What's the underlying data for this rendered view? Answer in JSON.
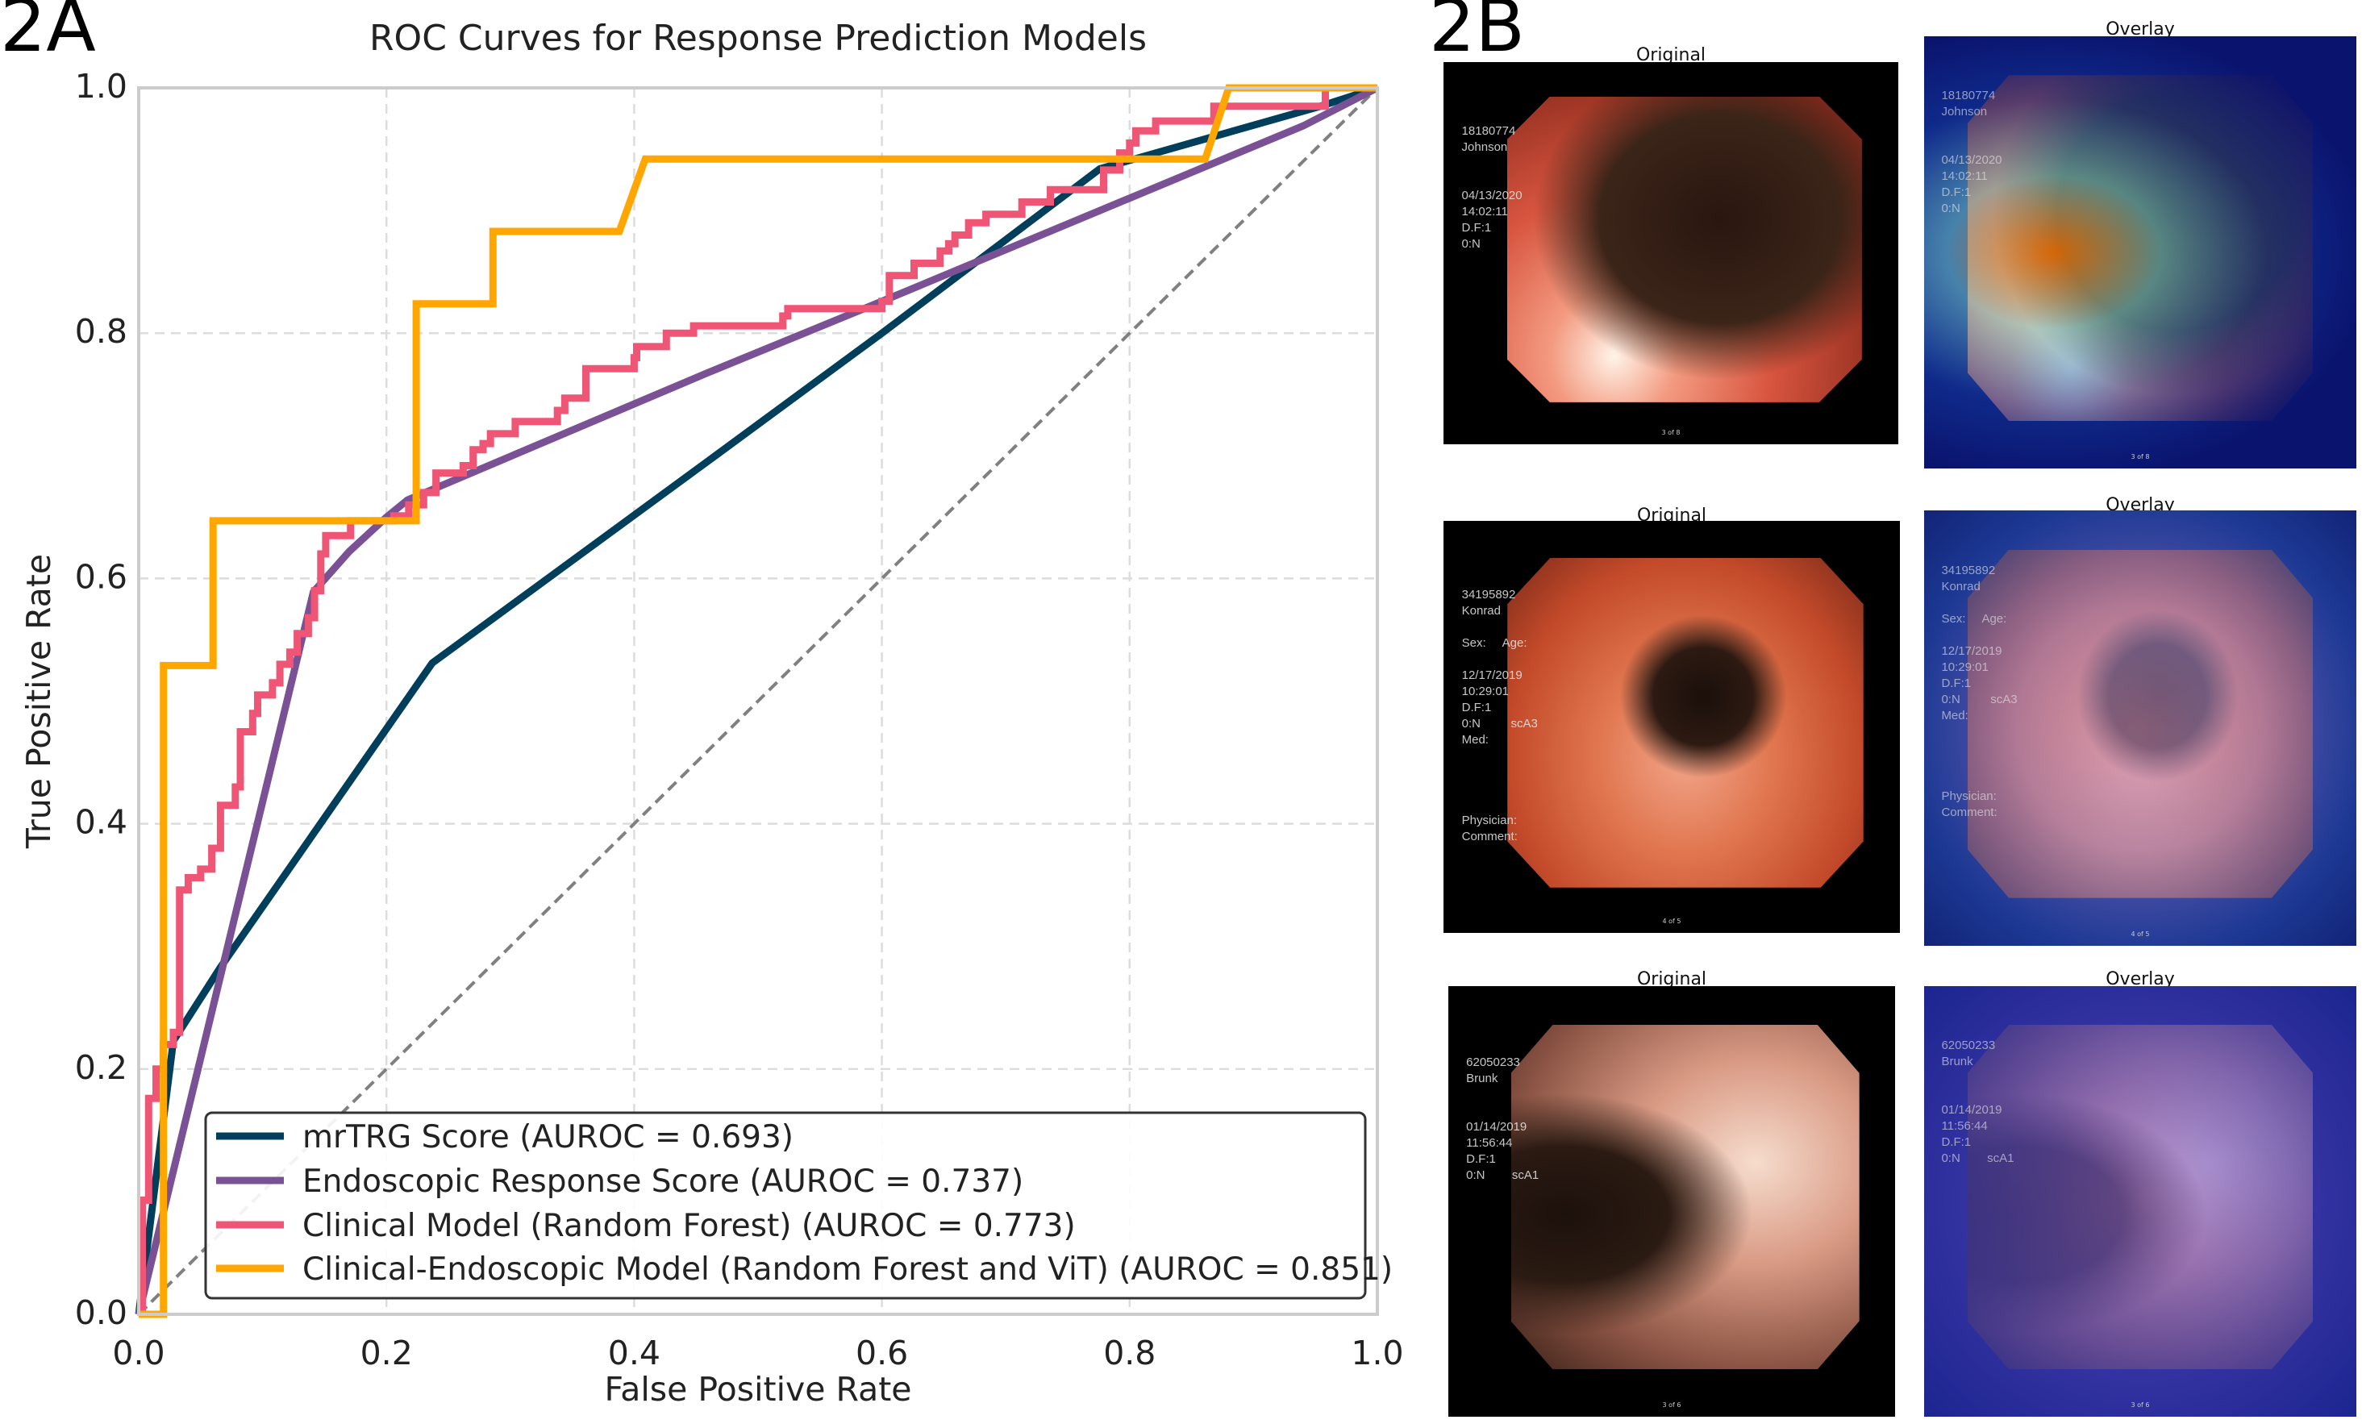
{
  "panels": {
    "a_label": "2A",
    "b_label": "2B"
  },
  "chart_data": {
    "type": "line",
    "title": "ROC Curves for Response Prediction Models",
    "xlabel": "False Positive Rate",
    "ylabel": "True Positive Rate",
    "xlim": [
      0,
      1
    ],
    "ylim": [
      0,
      1
    ],
    "xticks": [
      "0.0",
      "0.2",
      "0.4",
      "0.6",
      "0.8",
      "1.0"
    ],
    "yticks": [
      "0.0",
      "0.2",
      "0.4",
      "0.6",
      "0.8",
      "1.0"
    ],
    "grid": true,
    "legend_position": "bottom-right",
    "reference_line": {
      "style": "dashed",
      "color": "#808080",
      "points": [
        [
          0,
          0
        ],
        [
          1,
          1
        ]
      ]
    },
    "series": [
      {
        "name": "mrTRG Score (AUROC = 0.693)",
        "color": "#003f5c",
        "points": [
          [
            0,
            0
          ],
          [
            0.028,
            0.223
          ],
          [
            0.066,
            0.283
          ],
          [
            0.237,
            0.531
          ],
          [
            0.46,
            0.696
          ],
          [
            0.6,
            0.8
          ],
          [
            0.776,
            0.934
          ],
          [
            0.954,
            0.985
          ],
          [
            1,
            1
          ]
        ]
      },
      {
        "name": "Endoscopic Response Score (AUROC = 0.737)",
        "color": "#7a5195",
        "points": [
          [
            0,
            0
          ],
          [
            0.141,
            0.589
          ],
          [
            0.17,
            0.622
          ],
          [
            0.2,
            0.65
          ],
          [
            0.217,
            0.664
          ],
          [
            0.46,
            0.768
          ],
          [
            0.6,
            0.826
          ],
          [
            0.94,
            0.969
          ],
          [
            1,
            1
          ]
        ]
      },
      {
        "name": "Clinical Model (Random Forest) (AUROC = 0.773)",
        "color": "#ef5675",
        "points": [
          [
            0,
            0
          ],
          [
            0.003,
            0
          ],
          [
            0.003,
            0.093
          ],
          [
            0.008,
            0.093
          ],
          [
            0.008,
            0.176
          ],
          [
            0.014,
            0.176
          ],
          [
            0.014,
            0.2
          ],
          [
            0.02,
            0.2
          ],
          [
            0.02,
            0.22
          ],
          [
            0.028,
            0.22
          ],
          [
            0.028,
            0.23
          ],
          [
            0.033,
            0.23
          ],
          [
            0.033,
            0.346
          ],
          [
            0.04,
            0.346
          ],
          [
            0.04,
            0.356
          ],
          [
            0.05,
            0.356
          ],
          [
            0.05,
            0.363
          ],
          [
            0.059,
            0.363
          ],
          [
            0.059,
            0.38
          ],
          [
            0.066,
            0.38
          ],
          [
            0.066,
            0.415
          ],
          [
            0.078,
            0.415
          ],
          [
            0.078,
            0.43
          ],
          [
            0.082,
            0.43
          ],
          [
            0.082,
            0.475
          ],
          [
            0.092,
            0.475
          ],
          [
            0.092,
            0.49
          ],
          [
            0.096,
            0.49
          ],
          [
            0.096,
            0.505
          ],
          [
            0.108,
            0.505
          ],
          [
            0.108,
            0.515
          ],
          [
            0.114,
            0.515
          ],
          [
            0.114,
            0.53
          ],
          [
            0.122,
            0.53
          ],
          [
            0.122,
            0.54
          ],
          [
            0.128,
            0.54
          ],
          [
            0.128,
            0.555
          ],
          [
            0.137,
            0.555
          ],
          [
            0.137,
            0.568
          ],
          [
            0.142,
            0.568
          ],
          [
            0.142,
            0.59
          ],
          [
            0.147,
            0.59
          ],
          [
            0.147,
            0.62
          ],
          [
            0.151,
            0.62
          ],
          [
            0.151,
            0.635
          ],
          [
            0.171,
            0.635
          ],
          [
            0.171,
            0.647
          ],
          [
            0.206,
            0.647
          ],
          [
            0.206,
            0.651
          ],
          [
            0.218,
            0.651
          ],
          [
            0.218,
            0.66
          ],
          [
            0.23,
            0.66
          ],
          [
            0.23,
            0.67
          ],
          [
            0.24,
            0.67
          ],
          [
            0.24,
            0.686
          ],
          [
            0.262,
            0.686
          ],
          [
            0.262,
            0.692
          ],
          [
            0.27,
            0.692
          ],
          [
            0.27,
            0.705
          ],
          [
            0.278,
            0.705
          ],
          [
            0.278,
            0.71
          ],
          [
            0.284,
            0.71
          ],
          [
            0.284,
            0.718
          ],
          [
            0.304,
            0.718
          ],
          [
            0.304,
            0.728
          ],
          [
            0.338,
            0.728
          ],
          [
            0.338,
            0.737
          ],
          [
            0.344,
            0.737
          ],
          [
            0.344,
            0.747
          ],
          [
            0.361,
            0.747
          ],
          [
            0.361,
            0.771
          ],
          [
            0.4,
            0.771
          ],
          [
            0.4,
            0.78
          ],
          [
            0.402,
            0.78
          ],
          [
            0.402,
            0.789
          ],
          [
            0.426,
            0.789
          ],
          [
            0.426,
            0.8
          ],
          [
            0.448,
            0.8
          ],
          [
            0.448,
            0.806
          ],
          [
            0.52,
            0.806
          ],
          [
            0.52,
            0.814
          ],
          [
            0.524,
            0.814
          ],
          [
            0.524,
            0.82
          ],
          [
            0.6,
            0.82
          ],
          [
            0.6,
            0.826
          ],
          [
            0.606,
            0.826
          ],
          [
            0.606,
            0.847
          ],
          [
            0.626,
            0.847
          ],
          [
            0.626,
            0.857
          ],
          [
            0.647,
            0.857
          ],
          [
            0.647,
            0.867
          ],
          [
            0.654,
            0.867
          ],
          [
            0.654,
            0.873
          ],
          [
            0.659,
            0.873
          ],
          [
            0.659,
            0.88
          ],
          [
            0.67,
            0.88
          ],
          [
            0.67,
            0.89
          ],
          [
            0.684,
            0.89
          ],
          [
            0.684,
            0.897
          ],
          [
            0.713,
            0.897
          ],
          [
            0.713,
            0.907
          ],
          [
            0.736,
            0.907
          ],
          [
            0.736,
            0.917
          ],
          [
            0.779,
            0.917
          ],
          [
            0.779,
            0.933
          ],
          [
            0.792,
            0.933
          ],
          [
            0.792,
            0.947
          ],
          [
            0.8,
            0.947
          ],
          [
            0.8,
            0.955
          ],
          [
            0.805,
            0.955
          ],
          [
            0.805,
            0.965
          ],
          [
            0.821,
            0.965
          ],
          [
            0.821,
            0.973
          ],
          [
            0.868,
            0.973
          ],
          [
            0.868,
            0.985
          ],
          [
            0.958,
            0.985
          ],
          [
            0.958,
            1
          ],
          [
            1,
            1
          ]
        ]
      },
      {
        "name": "Clinical-Endoscopic Model (Random Forest and ViT) (AUROC = 0.851)",
        "color": "#ffa600",
        "points": [
          [
            0,
            0
          ],
          [
            0.02,
            0
          ],
          [
            0.02,
            0.529
          ],
          [
            0.06,
            0.529
          ],
          [
            0.06,
            0.647
          ],
          [
            0.224,
            0.647
          ],
          [
            0.224,
            0.824
          ],
          [
            0.286,
            0.824
          ],
          [
            0.286,
            0.883
          ],
          [
            0.388,
            0.883
          ],
          [
            0.409,
            0.942
          ],
          [
            0.861,
            0.942
          ],
          [
            0.88,
            1
          ],
          [
            1,
            1
          ]
        ]
      }
    ]
  },
  "images": [
    {
      "original_title": "Original",
      "overlay_title": "Overlay",
      "text": "18180774\nJohnson\n\n\n04/13/2020\n14:02:11\nD.F:1\n0:N",
      "footer": "3 of 8"
    },
    {
      "original_title": "Original",
      "overlay_title": "Overlay",
      "text": "34195892\nKonrad\n\nSex:     Age:\n\n12/17/2019\n10:29:01\nD.F:1\n0:N         scA3\nMed:\n\n\n\n\nPhysician:\nComment:",
      "footer": "4 of 5"
    },
    {
      "original_title": "Original",
      "overlay_title": "Overlay",
      "text": "62050233\nBrunk\n\n\n01/14/2019\n11:56:44\nD.F:1\n0:N        scA1",
      "footer": "3 of 6"
    }
  ]
}
